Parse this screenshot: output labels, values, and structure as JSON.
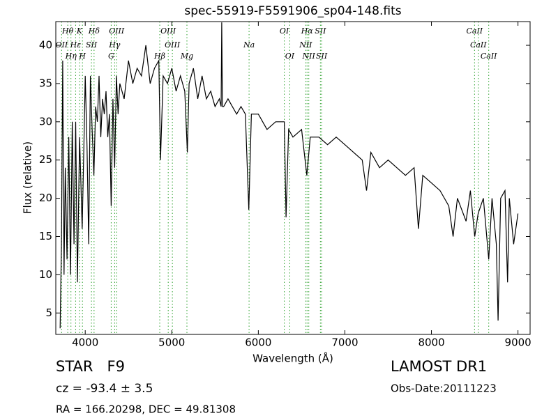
{
  "chart_data": {
    "type": "line",
    "title": "spec-55919-F5591906_sp04-148.fits",
    "x_label": "Wavelength (Å)",
    "y_label": "Flux (relative)",
    "xlim": [
      3660,
      9140
    ],
    "ylim": [
      2.2,
      43.1
    ],
    "xticks": [
      4000,
      5000,
      6000,
      7000,
      8000,
      9000
    ],
    "yticks": [
      5,
      10,
      15,
      20,
      25,
      30,
      35,
      40
    ],
    "x": [
      3710,
      3725,
      3740,
      3755,
      3770,
      3790,
      3810,
      3830,
      3850,
      3870,
      3890,
      3910,
      3935,
      3950,
      3965,
      3985,
      4000,
      4020,
      4040,
      4060,
      4080,
      4100,
      4120,
      4140,
      4160,
      4180,
      4200,
      4220,
      4240,
      4260,
      4280,
      4300,
      4320,
      4340,
      4360,
      4380,
      4400,
      4450,
      4500,
      4550,
      4600,
      4650,
      4700,
      4750,
      4800,
      4850,
      4870,
      4900,
      4950,
      5000,
      5050,
      5100,
      5150,
      5180,
      5200,
      5250,
      5300,
      5350,
      5400,
      5450,
      5500,
      5550,
      5570,
      5577,
      5585,
      5600,
      5650,
      5700,
      5750,
      5800,
      5850,
      5890,
      5920,
      6000,
      6100,
      6200,
      6300,
      6320,
      6350,
      6400,
      6500,
      6560,
      6600,
      6700,
      6800,
      6900,
      7000,
      7100,
      7200,
      7250,
      7300,
      7400,
      7500,
      7600,
      7700,
      7800,
      7850,
      7900,
      8000,
      8100,
      8200,
      8250,
      8300,
      8400,
      8450,
      8500,
      8540,
      8600,
      8662,
      8700,
      8750,
      8770,
      8800,
      8850,
      8880,
      8900,
      8950,
      9000
    ],
    "series": [
      {
        "color": "#000000",
        "values": [
          3,
          14,
          38,
          10,
          24,
          12,
          28,
          10,
          30,
          14,
          30,
          9,
          28,
          22,
          16,
          27,
          36,
          27,
          14,
          36,
          29,
          23,
          32,
          30,
          36,
          28,
          33,
          31,
          34,
          28,
          31,
          19,
          33,
          24,
          36,
          31,
          35,
          33,
          38,
          35,
          37,
          36,
          40,
          35,
          37,
          38,
          25,
          36,
          35,
          37,
          34,
          36,
          34,
          26,
          35,
          37,
          33,
          36,
          33,
          34,
          32,
          33,
          32,
          43,
          32,
          32,
          33,
          32,
          31,
          32,
          31,
          18.5,
          31,
          31,
          29,
          30,
          30,
          17.5,
          29,
          28,
          29,
          23,
          28,
          28,
          27,
          28,
          27,
          26,
          25,
          21,
          26,
          24,
          25,
          24,
          23,
          24,
          16,
          23,
          22,
          21,
          19,
          15,
          20,
          17,
          21,
          15,
          18,
          20,
          12,
          20,
          14,
          4,
          20,
          21,
          9,
          20,
          14,
          18
        ]
      }
    ],
    "line_color": "#2ca02c",
    "spectral_lines": [
      [
        {
          "wavelength": 3798,
          "label": "Hθ"
        },
        {
          "wavelength": 3934,
          "label": "K"
        },
        {
          "wavelength": 4102,
          "label": "Hδ"
        },
        {
          "wavelength": 4363,
          "label": "OIII"
        },
        {
          "wavelength": 4959,
          "label": "OIII"
        },
        {
          "wavelength": 6300,
          "label": "OI"
        },
        {
          "wavelength": 6563,
          "label": "Hα"
        },
        {
          "wavelength": 6717,
          "label": "SII"
        },
        {
          "wavelength": 8498,
          "label": "CaII"
        }
      ],
      [
        {
          "wavelength": 3727,
          "label": "OII"
        },
        {
          "wavelength": 3889,
          "label": "Hε"
        },
        {
          "wavelength": 4072,
          "label": "SII"
        },
        {
          "wavelength": 4340,
          "label": "Hγ"
        },
        {
          "wavelength": 5007,
          "label": "OIII"
        },
        {
          "wavelength": 5893,
          "label": "Na"
        },
        {
          "wavelength": 6548,
          "label": "NII"
        },
        {
          "wavelength": 8542,
          "label": "CaII"
        }
      ],
      [
        {
          "wavelength": 3835,
          "label": "Hη"
        },
        {
          "wavelength": 3968,
          "label": "H"
        },
        {
          "wavelength": 4300,
          "label": "G"
        },
        {
          "wavelength": 4861,
          "label": "Hβ"
        },
        {
          "wavelength": 5175,
          "label": "Mg"
        },
        {
          "wavelength": 6363,
          "label": "OI"
        },
        {
          "wavelength": 6583,
          "label": "NII"
        },
        {
          "wavelength": 6731,
          "label": "SII"
        },
        {
          "wavelength": 8662,
          "label": "CaII"
        }
      ]
    ],
    "class_label": "STAR   F9",
    "survey": "LAMOST DR1",
    "redshift": "cz = -93.4 ± 3.5",
    "obs_date": "Obs-Date:20111223",
    "coordinates": "RA = 166.20298, DEC = 49.81308"
  }
}
